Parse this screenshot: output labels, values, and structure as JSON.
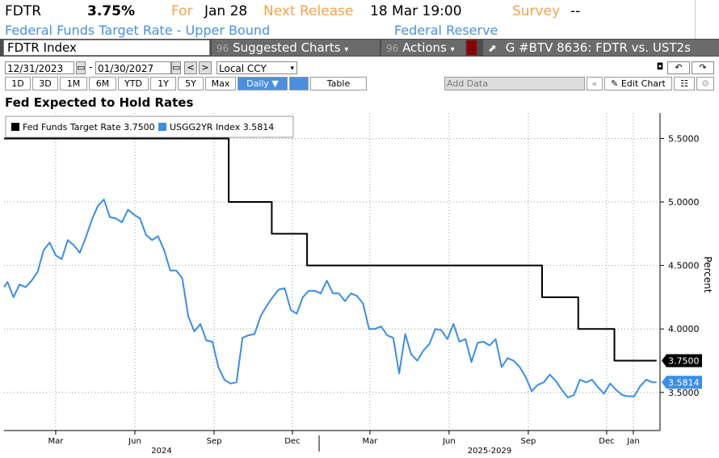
{
  "header": {
    "ticker": "FDTR",
    "value": "3.75%",
    "for_label": "For",
    "for_date": "Jan 28",
    "next_label": "Next Release",
    "next_date": "18 Mar 19:00",
    "survey_label": "Survey",
    "survey_value": "--",
    "description": "Federal Funds Target Rate - Upper Bound",
    "source": "Federal Reserve"
  },
  "toolbar": {
    "security": "FDTR Index",
    "suggested_charts": "Suggested Charts",
    "actions": "Actions",
    "chart_id": "G #BTV 8636: FDTR vs. UST2s",
    "suggested_prefix": "96",
    "actions_prefix": "96"
  },
  "date_row": {
    "start": "12/31/2023",
    "end": "01/30/2027",
    "currency": "Local CCY",
    "prev": "<",
    "next": ">"
  },
  "period_row": {
    "periods": [
      "1D",
      "3D",
      "1M",
      "6M",
      "YTD",
      "1Y",
      "5Y",
      "Max"
    ],
    "frequency": "Daily ▼",
    "table": "Table",
    "add_data_placeholder": "Add Data",
    "edit_chart": "Edit Chart"
  },
  "chart_data": {
    "type": "line",
    "title": "Fed Expected to Hold Rates",
    "ylabel": "Percent",
    "ylim": [
      3.2,
      5.7
    ],
    "y_ticks": [
      "5.5000",
      "5.0000",
      "4.5000",
      "4.0000",
      "3.5000"
    ],
    "y_tick_values": [
      5.5,
      5.0,
      4.5,
      4.0,
      3.5
    ],
    "x_ticks": [
      "Mar",
      "Jun",
      "Sep",
      "Dec",
      "Mar",
      "Jun",
      "Sep",
      "Dec",
      "Jan"
    ],
    "x_tick_values": [
      "2024-03-01",
      "2024-06-01",
      "2024-09-01",
      "2024-12-01",
      "2025-03-01",
      "2025-06-01",
      "2025-09-01",
      "2025-12-01",
      "2026-01-01"
    ],
    "x_range": [
      "2024-01-01",
      "2026-02-01"
    ],
    "year_labels": [
      "2024",
      "2025-2029"
    ],
    "grid": true,
    "legend_position": "top-left",
    "series": [
      {
        "name": "Fed Funds Target Rate",
        "legend_value": "3.7500",
        "last_label": "3.7500",
        "color": "#000000",
        "step": true,
        "x": [
          "2024-01-01",
          "2024-09-18",
          "2024-11-07",
          "2024-12-18",
          "2025-09-17",
          "2025-10-29",
          "2025-12-10",
          "2026-01-28"
        ],
        "values": [
          5.5,
          5.0,
          4.75,
          4.5,
          4.25,
          4.0,
          3.75,
          3.75
        ]
      },
      {
        "name": "USGG2YR Index",
        "legend_value": "3.5814",
        "last_label": "3.5814",
        "color": "#3a8ee6",
        "step": false,
        "x": [
          "2024-01-01",
          "2024-01-05",
          "2024-01-12",
          "2024-01-19",
          "2024-01-26",
          "2024-02-02",
          "2024-02-09",
          "2024-02-16",
          "2024-02-23",
          "2024-03-01",
          "2024-03-08",
          "2024-03-15",
          "2024-03-22",
          "2024-03-29",
          "2024-04-05",
          "2024-04-12",
          "2024-04-19",
          "2024-04-26",
          "2024-05-03",
          "2024-05-10",
          "2024-05-17",
          "2024-05-24",
          "2024-05-31",
          "2024-06-07",
          "2024-06-14",
          "2024-06-21",
          "2024-06-28",
          "2024-07-05",
          "2024-07-12",
          "2024-07-19",
          "2024-07-26",
          "2024-08-02",
          "2024-08-09",
          "2024-08-16",
          "2024-08-23",
          "2024-08-30",
          "2024-09-06",
          "2024-09-13",
          "2024-09-20",
          "2024-09-27",
          "2024-10-04",
          "2024-10-11",
          "2024-10-18",
          "2024-10-25",
          "2024-11-01",
          "2024-11-08",
          "2024-11-15",
          "2024-11-22",
          "2024-11-29",
          "2024-12-06",
          "2024-12-13",
          "2024-12-20",
          "2024-12-27",
          "2025-01-03",
          "2025-01-10",
          "2025-01-17",
          "2025-01-24",
          "2025-01-31",
          "2025-02-07",
          "2025-02-14",
          "2025-02-21",
          "2025-02-28",
          "2025-03-07",
          "2025-03-14",
          "2025-03-21",
          "2025-03-28",
          "2025-04-04",
          "2025-04-11",
          "2025-04-18",
          "2025-04-25",
          "2025-05-02",
          "2025-05-09",
          "2025-05-16",
          "2025-05-23",
          "2025-05-30",
          "2025-06-06",
          "2025-06-13",
          "2025-06-20",
          "2025-06-27",
          "2025-07-04",
          "2025-07-11",
          "2025-07-18",
          "2025-07-25",
          "2025-08-01",
          "2025-08-08",
          "2025-08-15",
          "2025-08-22",
          "2025-08-29",
          "2025-09-05",
          "2025-09-12",
          "2025-09-19",
          "2025-09-26",
          "2025-10-03",
          "2025-10-10",
          "2025-10-17",
          "2025-10-24",
          "2025-10-31",
          "2025-11-07",
          "2025-11-14",
          "2025-11-21",
          "2025-11-28",
          "2025-12-05",
          "2025-12-12",
          "2025-12-19",
          "2025-12-26",
          "2026-01-02",
          "2026-01-09",
          "2026-01-16",
          "2026-01-23",
          "2026-01-28"
        ],
        "values": [
          4.33,
          4.37,
          4.25,
          4.35,
          4.33,
          4.38,
          4.45,
          4.62,
          4.68,
          4.58,
          4.55,
          4.7,
          4.66,
          4.6,
          4.72,
          4.86,
          4.97,
          5.02,
          4.88,
          4.87,
          4.84,
          4.94,
          4.9,
          4.87,
          4.74,
          4.7,
          4.73,
          4.62,
          4.46,
          4.46,
          4.4,
          4.1,
          3.98,
          4.04,
          3.91,
          3.9,
          3.7,
          3.6,
          3.57,
          3.58,
          3.93,
          3.95,
          3.96,
          4.1,
          4.18,
          4.25,
          4.31,
          4.32,
          4.15,
          4.12,
          4.25,
          4.3,
          4.3,
          4.28,
          4.38,
          4.28,
          4.28,
          4.22,
          4.28,
          4.26,
          4.2,
          4.0,
          4.0,
          4.02,
          3.95,
          3.93,
          3.65,
          3.96,
          3.8,
          3.75,
          3.83,
          3.88,
          4.0,
          3.99,
          3.92,
          4.04,
          3.9,
          3.92,
          3.74,
          3.89,
          3.9,
          3.87,
          3.92,
          3.7,
          3.77,
          3.75,
          3.7,
          3.62,
          3.51,
          3.56,
          3.58,
          3.64,
          3.59,
          3.52,
          3.46,
          3.48,
          3.6,
          3.58,
          3.6,
          3.54,
          3.49,
          3.57,
          3.52,
          3.48,
          3.47,
          3.47,
          3.55,
          3.6,
          3.58,
          3.58
        ]
      }
    ]
  }
}
